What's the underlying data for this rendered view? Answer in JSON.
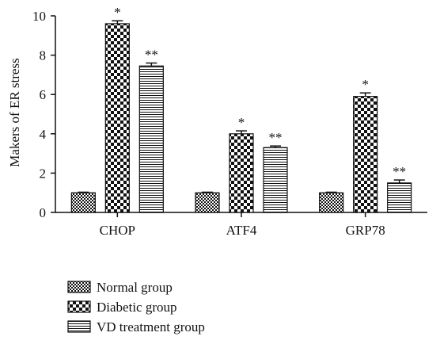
{
  "chart_data": {
    "type": "bar",
    "ylabel": "Makers of ER stress",
    "xlabel": "",
    "ylim": [
      0,
      10
    ],
    "yticks": [
      0,
      2,
      4,
      6,
      8,
      10
    ],
    "categories": [
      "CHOP",
      "ATF4",
      "GRP78"
    ],
    "grid": false,
    "legend_position": "bottom-left",
    "series": [
      {
        "name": "Normal group",
        "pattern": "small-checker",
        "values": [
          1.0,
          1.0,
          1.0
        ],
        "errors": [
          0.03,
          0.03,
          0.03
        ],
        "annotations": [
          "",
          "",
          ""
        ]
      },
      {
        "name": "Diabetic group",
        "pattern": "large-checker",
        "values": [
          9.6,
          4.0,
          5.9
        ],
        "errors": [
          0.15,
          0.15,
          0.18
        ],
        "annotations": [
          "*",
          "*",
          "*"
        ]
      },
      {
        "name": "VD treatment group",
        "pattern": "horizontal-lines",
        "values": [
          7.45,
          3.3,
          1.5
        ],
        "errors": [
          0.15,
          0.08,
          0.15
        ],
        "annotations": [
          "**",
          "**",
          "**"
        ]
      }
    ]
  }
}
